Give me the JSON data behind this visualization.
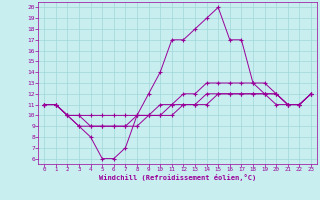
{
  "xlabel": "Windchill (Refroidissement éolien,°C)",
  "xlim": [
    -0.5,
    23.5
  ],
  "ylim": [
    5.5,
    20.5
  ],
  "xticks": [
    0,
    1,
    2,
    3,
    4,
    5,
    6,
    7,
    8,
    9,
    10,
    11,
    12,
    13,
    14,
    15,
    16,
    17,
    18,
    19,
    20,
    21,
    22,
    23
  ],
  "yticks": [
    6,
    7,
    8,
    9,
    10,
    11,
    12,
    13,
    14,
    15,
    16,
    17,
    18,
    19,
    20
  ],
  "bg_color": "#c8eef0",
  "line_color": "#990099",
  "grid_color": "#a0d8d8",
  "lines": [
    {
      "x": [
        0,
        1,
        2,
        3,
        4,
        5,
        6,
        7,
        8,
        9,
        10,
        11,
        12,
        13,
        14,
        15,
        16,
        17,
        18,
        19,
        20,
        21,
        22,
        23
      ],
      "y": [
        11,
        11,
        10,
        9,
        8,
        6,
        6,
        7,
        10,
        12,
        14,
        17,
        17,
        18,
        19,
        20,
        17,
        17,
        13,
        12,
        11,
        11,
        11,
        12
      ]
    },
    {
      "x": [
        0,
        1,
        2,
        3,
        4,
        5,
        6,
        7,
        8,
        9,
        10,
        11,
        12,
        13,
        14,
        15,
        16,
        17,
        18,
        19,
        20,
        21,
        22,
        23
      ],
      "y": [
        11,
        11,
        10,
        9,
        9,
        9,
        9,
        9,
        10,
        10,
        11,
        11,
        12,
        12,
        13,
        13,
        13,
        13,
        13,
        13,
        12,
        11,
        11,
        12
      ]
    },
    {
      "x": [
        0,
        1,
        2,
        3,
        4,
        5,
        6,
        7,
        8,
        9,
        10,
        11,
        12,
        13,
        14,
        15,
        16,
        17,
        18,
        19,
        20,
        21,
        22,
        23
      ],
      "y": [
        11,
        11,
        10,
        10,
        10,
        10,
        10,
        10,
        10,
        10,
        10,
        11,
        11,
        11,
        12,
        12,
        12,
        12,
        12,
        12,
        12,
        11,
        11,
        12
      ]
    },
    {
      "x": [
        0,
        1,
        2,
        3,
        4,
        5,
        6,
        7,
        8,
        9,
        10,
        11,
        12,
        13,
        14,
        15,
        16,
        17,
        18,
        19,
        20,
        21,
        22,
        23
      ],
      "y": [
        11,
        11,
        10,
        10,
        9,
        9,
        9,
        9,
        9,
        10,
        10,
        10,
        11,
        11,
        11,
        12,
        12,
        12,
        12,
        12,
        12,
        11,
        11,
        12
      ]
    }
  ]
}
